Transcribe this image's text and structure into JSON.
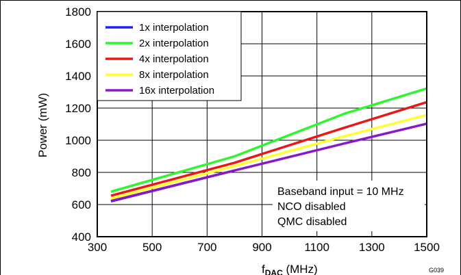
{
  "chart_data": {
    "type": "line",
    "xlabel": "f",
    "xlabel_sub": "DAC",
    "xlabel_unit": " (MHz)",
    "ylabel": "Power (mW)",
    "xlim": [
      300,
      1500
    ],
    "ylim": [
      400,
      1800
    ],
    "xticks": [
      "300",
      "500",
      "700",
      "900",
      "1100",
      "1300",
      "1500"
    ],
    "yticks": [
      "400",
      "600",
      "800",
      "1000",
      "1200",
      "1400",
      "1600",
      "1800"
    ],
    "grid": true,
    "legend_position": "top-left",
    "series": [
      {
        "name": "1x interpolation",
        "color": "#1f1fff",
        "x": [
          350,
          800
        ],
        "y": [
          620,
          812
        ]
      },
      {
        "name": "2x interpolation",
        "color": "#2ef52e",
        "x": [
          350,
          800,
          1200,
          1500
        ],
        "y": [
          680,
          900,
          1165,
          1322
        ]
      },
      {
        "name": "4x interpolation",
        "color": "#e81818",
        "x": [
          350,
          800,
          1200,
          1500
        ],
        "y": [
          655,
          860,
          1078,
          1237
        ]
      },
      {
        "name": "8x interpolation",
        "color": "#ffff2e",
        "x": [
          350,
          800,
          1200,
          1500
        ],
        "y": [
          638,
          840,
          1025,
          1158
        ]
      },
      {
        "name": "16x interpolation",
        "color": "#8b18c8",
        "x": [
          350,
          800,
          1200,
          1500
        ],
        "y": [
          622,
          812,
          980,
          1103
        ]
      }
    ],
    "annotations": [
      "Baseband input = 10 MHz",
      "NCO disabled",
      "QMC disabled"
    ],
    "figure_id": "G039"
  }
}
